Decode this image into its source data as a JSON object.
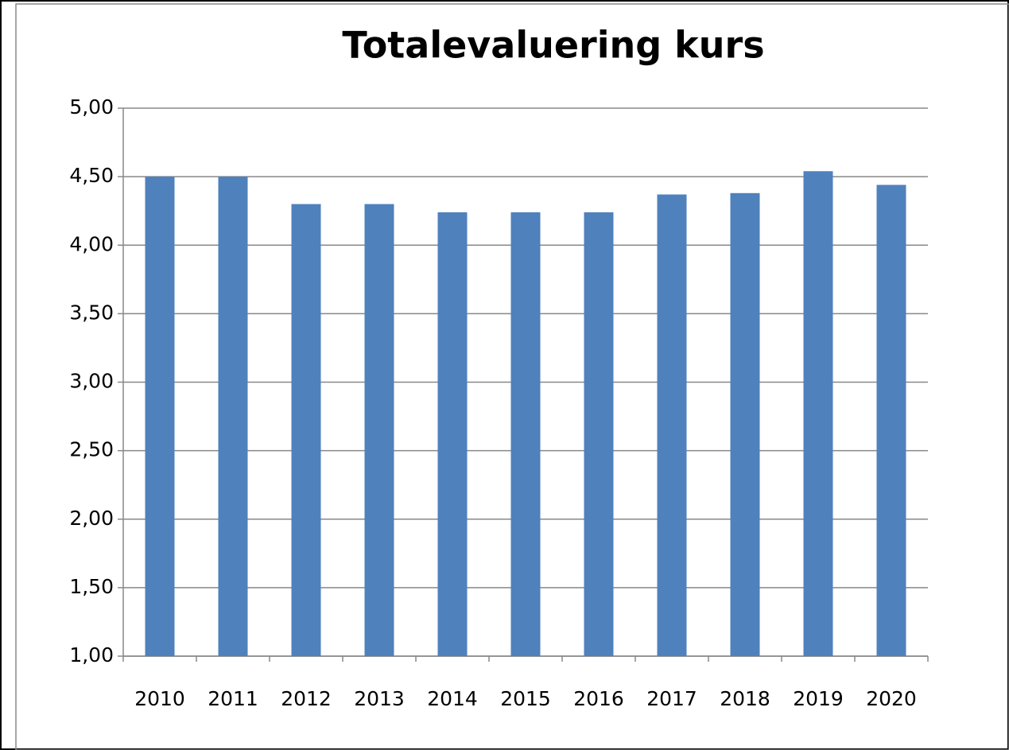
{
  "chart_data": {
    "type": "bar",
    "title": "Totalevaluering kurs",
    "categories": [
      "2010",
      "2011",
      "2012",
      "2013",
      "2014",
      "2015",
      "2016",
      "2017",
      "2018",
      "2019",
      "2020"
    ],
    "values": [
      4.5,
      4.5,
      4.3,
      4.3,
      4.24,
      4.24,
      4.24,
      4.37,
      4.38,
      4.54,
      4.44
    ],
    "color": "#4f81bd",
    "ylim": [
      1,
      5
    ],
    "yticks": [
      {
        "value": 1,
        "label": "1,00"
      },
      {
        "value": 1.5,
        "label": "1,50"
      },
      {
        "value": 2,
        "label": "2,00"
      },
      {
        "value": 2.5,
        "label": "2,50"
      },
      {
        "value": 3,
        "label": "3,00"
      },
      {
        "value": 3.5,
        "label": "3,50"
      },
      {
        "value": 4,
        "label": "4,00"
      },
      {
        "value": 4.5,
        "label": "4,50"
      },
      {
        "value": 5,
        "label": "5,00"
      }
    ],
    "grid": true
  }
}
